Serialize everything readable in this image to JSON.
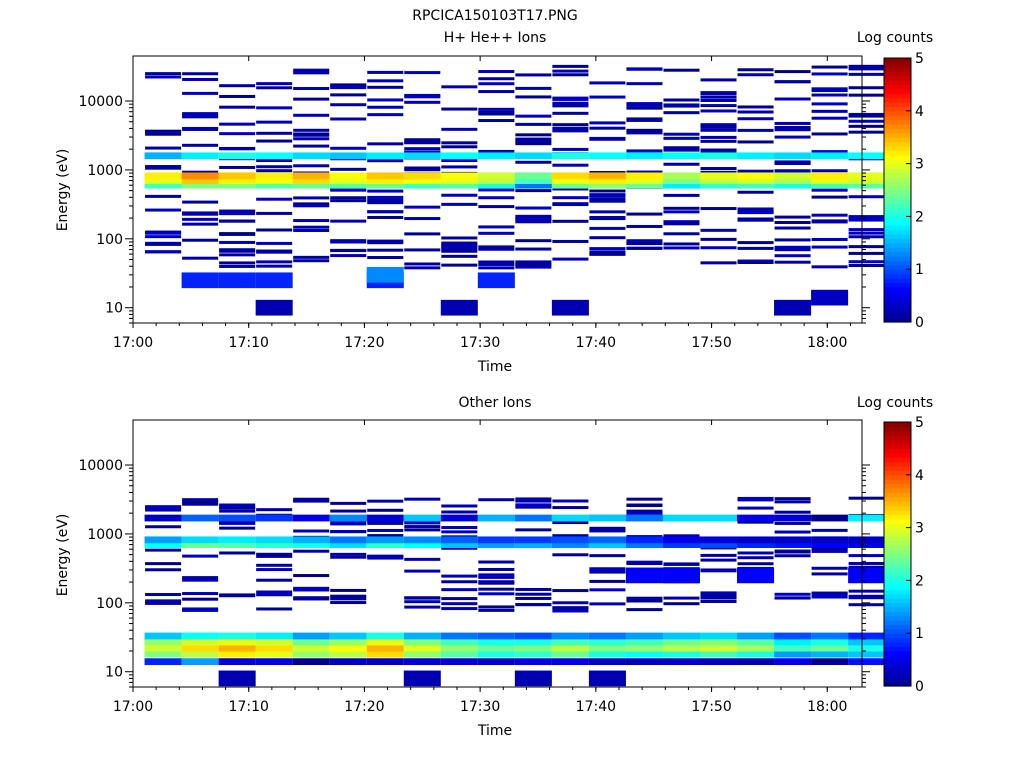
{
  "page": {
    "title": "RPCICA150103T17.PNG"
  },
  "colormap": [
    "#00008f",
    "#0000ff",
    "#007fff",
    "#00ffff",
    "#7fff7f",
    "#ffff00",
    "#ff7f00",
    "#ff0000",
    "#7f0000"
  ],
  "chart_data": [
    {
      "type": "heatmap",
      "title": "H+ He++ Ions",
      "xlabel": "Time",
      "ylabel": "Energy (eV)",
      "x_ticks": [
        "17:00",
        "17:10",
        "17:20",
        "17:30",
        "17:40",
        "17:50",
        "18:00"
      ],
      "x_range_minutes": [
        0,
        63
      ],
      "y_ticks": [
        "10",
        "100",
        "1000",
        "10000"
      ],
      "y_scale": "log",
      "y_range": [
        6,
        45000
      ],
      "colorbar": {
        "label": "Log counts",
        "ticks": [
          "0",
          "1",
          "2",
          "3",
          "4",
          "5"
        ],
        "range": [
          0,
          5
        ]
      },
      "time_bins_minutes": [
        1,
        4.2,
        7.4,
        10.6,
        13.8,
        17,
        20.2,
        23.4,
        26.6,
        29.8,
        33,
        36.2,
        39.4,
        42.6,
        45.8,
        49,
        52.2,
        55.4,
        58.6,
        61.8
      ],
      "dominant_bands": [
        {
          "energy_ev": 600,
          "log_counts": [
            2.2,
            2.5,
            2.5,
            2.3,
            2.4,
            2.3,
            2.4,
            2.2,
            2.3,
            2.0,
            1.2,
            2.4,
            2.6,
            2.4,
            1.8,
            2.1,
            2.2,
            2.0,
            2.2,
            2.3
          ]
        },
        {
          "energy_ev": 700,
          "log_counts": [
            3.0,
            3.4,
            3.2,
            3.1,
            3.3,
            3.0,
            3.2,
            3.1,
            3.0,
            2.8,
            2.2,
            3.1,
            3.2,
            3.0,
            2.5,
            2.8,
            2.9,
            2.7,
            3.0,
            2.9
          ]
        },
        {
          "energy_ev": 820,
          "log_counts": [
            3.2,
            3.7,
            3.4,
            3.2,
            3.5,
            3.1,
            3.4,
            3.3,
            3.1,
            2.9,
            2.4,
            3.3,
            3.5,
            3.2,
            2.7,
            3.0,
            3.1,
            2.9,
            3.2,
            3.0
          ]
        },
        {
          "energy_ev": 1600,
          "log_counts": [
            1.5,
            1.8,
            2.0,
            1.9,
            1.7,
            1.6,
            1.8,
            1.7,
            1.9,
            1.8,
            1.7,
            2.0,
            1.9,
            1.8,
            1.9,
            2.0,
            1.8,
            1.7,
            1.8,
            1.9
          ]
        }
      ],
      "low_energy_patches": [
        {
          "energy_ev": 10,
          "time_bins": [
            3,
            8,
            11,
            17
          ],
          "log_counts": 0.2
        },
        {
          "energy_ev": 25,
          "time_bins": [
            1,
            2,
            3,
            6,
            9
          ],
          "log_counts": 0.8
        },
        {
          "energy_ev": 30,
          "time_bins": [
            6
          ],
          "log_counts": 1.3
        },
        {
          "energy_ev": 14,
          "time_bins": [
            18
          ],
          "log_counts": 0.3
        }
      ]
    },
    {
      "type": "heatmap",
      "title": "Other Ions",
      "xlabel": "Time",
      "ylabel": "Energy (eV)",
      "x_ticks": [
        "17:00",
        "17:10",
        "17:20",
        "17:30",
        "17:40",
        "17:50",
        "18:00"
      ],
      "x_range_minutes": [
        0,
        63
      ],
      "y_ticks": [
        "10",
        "100",
        "1000",
        "10000"
      ],
      "y_scale": "log",
      "y_range": [
        6,
        45000
      ],
      "colorbar": {
        "label": "Log counts",
        "ticks": [
          "0",
          "1",
          "2",
          "3",
          "4",
          "5"
        ],
        "range": [
          0,
          5
        ]
      },
      "time_bins_minutes": [
        1,
        4.2,
        7.4,
        10.6,
        13.8,
        17,
        20.2,
        23.4,
        26.6,
        29.8,
        33,
        36.2,
        39.4,
        42.6,
        45.8,
        49,
        52.2,
        55.4,
        58.6,
        61.8
      ],
      "dominant_bands": [
        {
          "energy_ev": 14,
          "log_counts": [
            0.8,
            1.4,
            0.4,
            0.5,
            0.0,
            0.3,
            0.3,
            0.4,
            0.4,
            0.3,
            0.5,
            0.5,
            0.3,
            0.3,
            0.3,
            0.3,
            0.2,
            0.5,
            0.0,
            0.7
          ]
        },
        {
          "energy_ev": 18,
          "log_counts": [
            2.5,
            2.8,
            3.2,
            3.0,
            2.6,
            2.8,
            3.3,
            2.6,
            2.3,
            2.0,
            2.1,
            2.4,
            2.0,
            1.9,
            2.0,
            2.2,
            2.0,
            1.4,
            1.5,
            1.6
          ]
        },
        {
          "energy_ev": 22,
          "log_counts": [
            2.9,
            3.3,
            3.5,
            3.3,
            2.9,
            3.1,
            3.5,
            3.0,
            2.6,
            2.4,
            2.5,
            2.8,
            2.5,
            2.6,
            2.8,
            2.9,
            2.7,
            2.2,
            2.4,
            2.0
          ]
        },
        {
          "energy_ev": 27,
          "log_counts": [
            2.6,
            2.9,
            3.0,
            2.9,
            2.4,
            2.6,
            3.0,
            2.5,
            2.2,
            2.0,
            2.0,
            2.2,
            2.1,
            2.2,
            2.4,
            2.5,
            2.3,
            1.8,
            2.0,
            1.6
          ]
        },
        {
          "energy_ev": 33,
          "log_counts": [
            1.6,
            1.9,
            2.0,
            1.8,
            1.4,
            1.6,
            2.0,
            1.5,
            1.2,
            1.1,
            1.0,
            1.3,
            1.2,
            1.4,
            1.6,
            1.7,
            1.4,
            1.0,
            1.2,
            0.8
          ]
        },
        {
          "energy_ev": 700,
          "log_counts": [
            1.9,
            2.4,
            2.3,
            2.1,
            2.0,
            1.7,
            2.1,
            1.9,
            1.6,
            1.4,
            1.5,
            1.3,
            1.6,
            1.2,
            0.9,
            1.0,
            0.8,
            0.7,
            0.6,
            0.5
          ]
        },
        {
          "energy_ev": 820,
          "log_counts": [
            1.4,
            1.7,
            1.8,
            1.7,
            1.5,
            1.2,
            1.4,
            1.3,
            1.1,
            0.9,
            0.9,
            1.0,
            1.1,
            0.8,
            0.5,
            0.4,
            0.3,
            0.3,
            0.3,
            0.3
          ]
        },
        {
          "energy_ev": 1700,
          "log_counts": [
            0.3,
            1.1,
            1.0,
            0.9,
            0.5,
            1.3,
            0.4,
            1.6,
            0.4,
            1.5,
            1.2,
            1.7,
            1.6,
            1.2,
            1.7,
            1.7,
            0.5,
            0.4,
            0.0,
            1.8
          ]
        }
      ],
      "low_energy_patches": [
        {
          "energy_ev": 8,
          "time_bins": [
            2,
            7,
            10,
            12
          ],
          "log_counts": 0.2
        },
        {
          "energy_ev": 250,
          "time_bins": [
            13,
            14,
            16,
            19
          ],
          "log_counts": 0.6
        }
      ]
    }
  ]
}
